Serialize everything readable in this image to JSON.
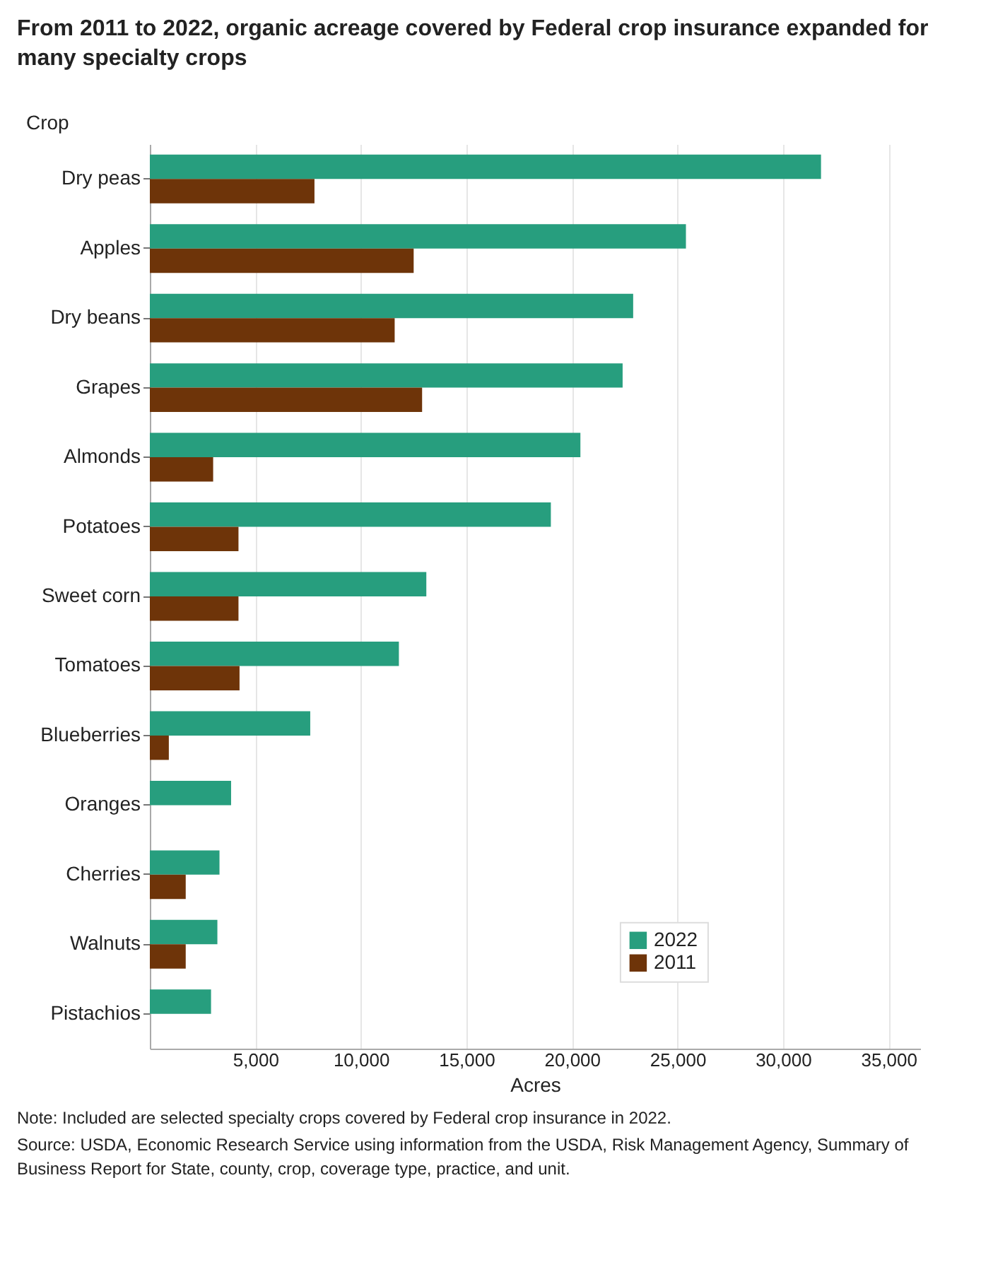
{
  "chart_data": {
    "type": "bar",
    "orientation": "horizontal",
    "title": "From 2011 to 2022, organic acreage covered by Federal crop insurance expanded for many specialty crops",
    "ylabel": "Crop",
    "xlabel": "Acres",
    "categories": [
      "Dry peas",
      "Apples",
      "Dry beans",
      "Grapes",
      "Almonds",
      "Potatoes",
      "Sweet corn",
      "Tomatoes",
      "Blueberries",
      "Oranges",
      "Cherries",
      "Walnuts",
      "Pistachios"
    ],
    "series": [
      {
        "name": "2022",
        "color": "#279e7e",
        "values": [
          31800,
          25400,
          22900,
          22400,
          20400,
          19000,
          13100,
          11800,
          7600,
          3850,
          3300,
          3200,
          2900
        ]
      },
      {
        "name": "2011",
        "color": "#6e3409",
        "values": [
          7800,
          12500,
          11600,
          12900,
          3000,
          4200,
          4200,
          4250,
          900,
          null,
          1700,
          1700,
          null
        ]
      }
    ],
    "xlim": [
      0,
      36500
    ],
    "xticks": [
      {
        "value": 5000,
        "label": "5,000"
      },
      {
        "value": 10000,
        "label": "10,000"
      },
      {
        "value": 15000,
        "label": "15,000"
      },
      {
        "value": 20000,
        "label": "20,000"
      },
      {
        "value": 25000,
        "label": "25,000"
      },
      {
        "value": 30000,
        "label": "30,000"
      },
      {
        "value": 35000,
        "label": "35,000"
      }
    ],
    "grid": "x",
    "legend": "bottom right",
    "annotations": [
      "Note: Included are selected specialty crops covered by Federal crop insurance in 2022.",
      "Source: USDA, Economic Research Service using information from the USDA, Risk Management Agency, Summary of Business Report for State, county, crop, coverage type, practice, and unit."
    ]
  }
}
